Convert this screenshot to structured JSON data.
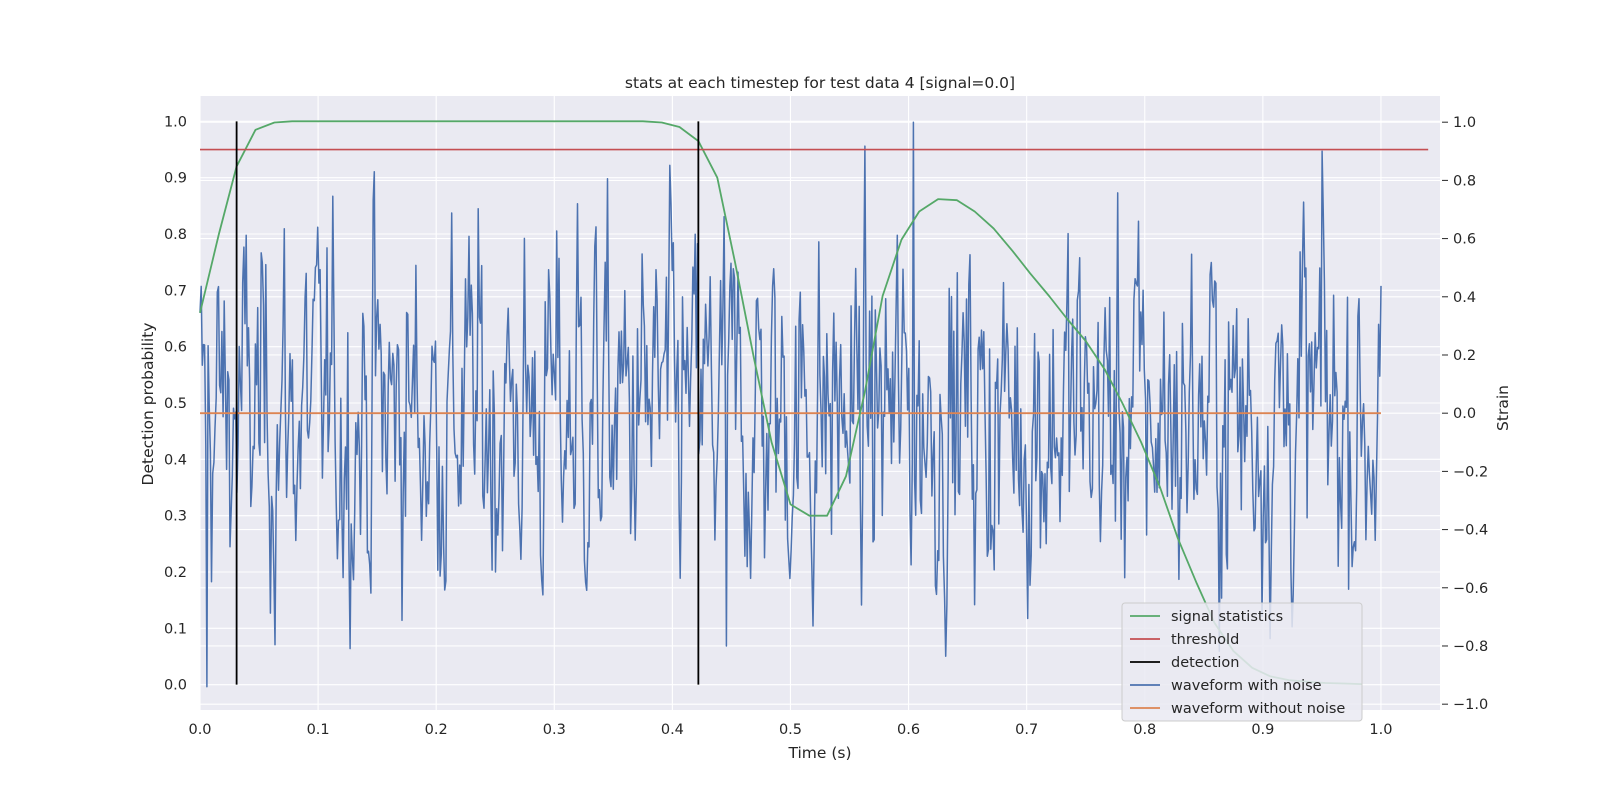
{
  "chart_data": {
    "type": "line",
    "title": "stats at each timestep for test data 4 [signal=0.0]",
    "xlabel": "Time (s)",
    "ylabel_left": "Detection probability",
    "ylabel_right": "Strain",
    "xlim": [
      0.0,
      1.05
    ],
    "ylim_left": [
      -0.045,
      1.045
    ],
    "ylim_right": [
      -1.02,
      1.09
    ],
    "x_ticks": [
      "0.0",
      "0.1",
      "0.2",
      "0.3",
      "0.4",
      "0.5",
      "0.6",
      "0.7",
      "0.8",
      "0.9",
      "1.0"
    ],
    "y_ticks_left": [
      "0.0",
      "0.1",
      "0.2",
      "0.3",
      "0.4",
      "0.5",
      "0.6",
      "0.7",
      "0.8",
      "0.9",
      "1.0"
    ],
    "y_ticks_right": [
      "−1.0",
      "−0.8",
      "−0.6",
      "−0.4",
      "−0.2",
      "0.0",
      "0.2",
      "0.4",
      "0.6",
      "0.8",
      "1.0"
    ],
    "grid": true,
    "legend_position": "lower-right",
    "colors": {
      "signal_statistics": "#55a868",
      "threshold": "#c44e52",
      "detection": "#000000",
      "waveform_with_noise": "#4c72b0",
      "waveform_without_noise": "#dd8452",
      "background": "#eaeaf2",
      "grid": "#ffffff"
    },
    "series": [
      {
        "name": "signal statistics",
        "axis": "left",
        "x": [
          0.0,
          0.016,
          0.031,
          0.047,
          0.063,
          0.078,
          0.094,
          0.109,
          0.125,
          0.141,
          0.156,
          0.172,
          0.188,
          0.203,
          0.219,
          0.234,
          0.25,
          0.266,
          0.281,
          0.297,
          0.313,
          0.328,
          0.344,
          0.359,
          0.375,
          0.391,
          0.406,
          0.422,
          0.438,
          0.453,
          0.469,
          0.484,
          0.5,
          0.516,
          0.531,
          0.547,
          0.563,
          0.578,
          0.594,
          0.609,
          0.625,
          0.641,
          0.656,
          0.672,
          0.688,
          0.703,
          0.719,
          0.734,
          0.75,
          0.766,
          0.781,
          0.797,
          0.813,
          0.828,
          0.844,
          0.859,
          0.875,
          0.891,
          0.906,
          0.922,
          0.938,
          0.953,
          0.969,
          0.984
        ],
        "values": [
          0.66,
          0.8,
          0.92,
          0.985,
          0.998,
          1.0,
          1.0,
          1.0,
          1.0,
          1.0,
          1.0,
          1.0,
          1.0,
          1.0,
          1.0,
          1.0,
          1.0,
          1.0,
          1.0,
          1.0,
          1.0,
          1.0,
          1.0,
          1.0,
          1.0,
          0.998,
          0.99,
          0.965,
          0.9,
          0.75,
          0.58,
          0.43,
          0.32,
          0.3,
          0.3,
          0.37,
          0.52,
          0.69,
          0.79,
          0.84,
          0.862,
          0.86,
          0.84,
          0.81,
          0.77,
          0.73,
          0.69,
          0.65,
          0.61,
          0.56,
          0.5,
          0.43,
          0.35,
          0.26,
          0.18,
          0.11,
          0.06,
          0.03,
          0.015,
          0.008,
          0.005,
          0.003,
          0.002,
          0.001
        ]
      },
      {
        "name": "threshold",
        "axis": "left",
        "x": [
          0.0,
          1.04
        ],
        "values": [
          0.95,
          0.95
        ]
      },
      {
        "name": "detection",
        "axis": "left",
        "segments": [
          {
            "x": 0.031,
            "y": [
              0.0,
              1.0
            ]
          },
          {
            "x": 0.422,
            "y": [
              0.0,
              1.0
            ]
          }
        ]
      },
      {
        "name": "waveform with noise",
        "axis": "right",
        "x_range": [
          0.0,
          1.0
        ],
        "samples": 1024,
        "ylim_observed": [
          -0.94,
          1.0
        ],
        "noise_std": 0.26,
        "peaks": [
          {
            "x": 0.006,
            "value": -0.94
          },
          {
            "x": 0.148,
            "value": 0.83
          },
          {
            "x": 0.32,
            "value": 0.72
          },
          {
            "x": 0.446,
            "value": -0.8
          },
          {
            "x": 0.604,
            "value": 1.0
          },
          {
            "x": 0.95,
            "value": 0.9
          }
        ]
      },
      {
        "name": "waveform without noise",
        "axis": "right",
        "x": [
          0.0,
          1.0
        ],
        "values": [
          0.0,
          0.0
        ]
      }
    ]
  }
}
